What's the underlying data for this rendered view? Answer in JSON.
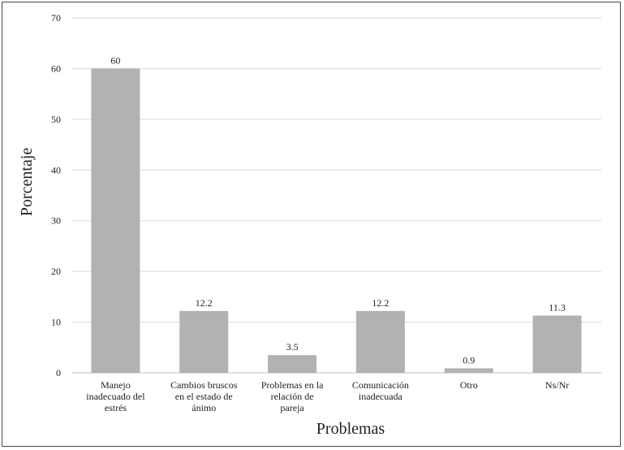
{
  "chart_data": {
    "type": "bar",
    "categories": [
      "Manejo inadecuado del estrés",
      "Cambios bruscos en el estado de ánimo",
      "Problemas en la relación de pareja",
      "Comunicación inadecuada",
      "Otro",
      "Ns/Nr"
    ],
    "category_lines": [
      [
        "Manejo",
        "inadecuado del",
        "estrés"
      ],
      [
        "Cambios bruscos",
        "en el estado de",
        "ánimo"
      ],
      [
        "Problemas en la",
        "relación de",
        "pareja"
      ],
      [
        "Comunicación",
        "inadecuada"
      ],
      [
        "Otro"
      ],
      [
        "Ns/Nr"
      ]
    ],
    "values": [
      60,
      12.2,
      3.5,
      12.2,
      0.9,
      11.3
    ],
    "data_labels": [
      "60",
      "12.2",
      "3.5",
      "12.2",
      "0.9",
      "11.3"
    ],
    "title": "",
    "xlabel": "Problemas",
    "ylabel": "Porcentaje",
    "ylim": [
      0,
      70
    ],
    "yticks": [
      0,
      10,
      20,
      30,
      40,
      50,
      60,
      70
    ],
    "grid": true,
    "legend": "none",
    "colors": {
      "bar": "#b1b2b4",
      "grid": "#d9d9d9",
      "axis": "#bfbfbf"
    }
  }
}
